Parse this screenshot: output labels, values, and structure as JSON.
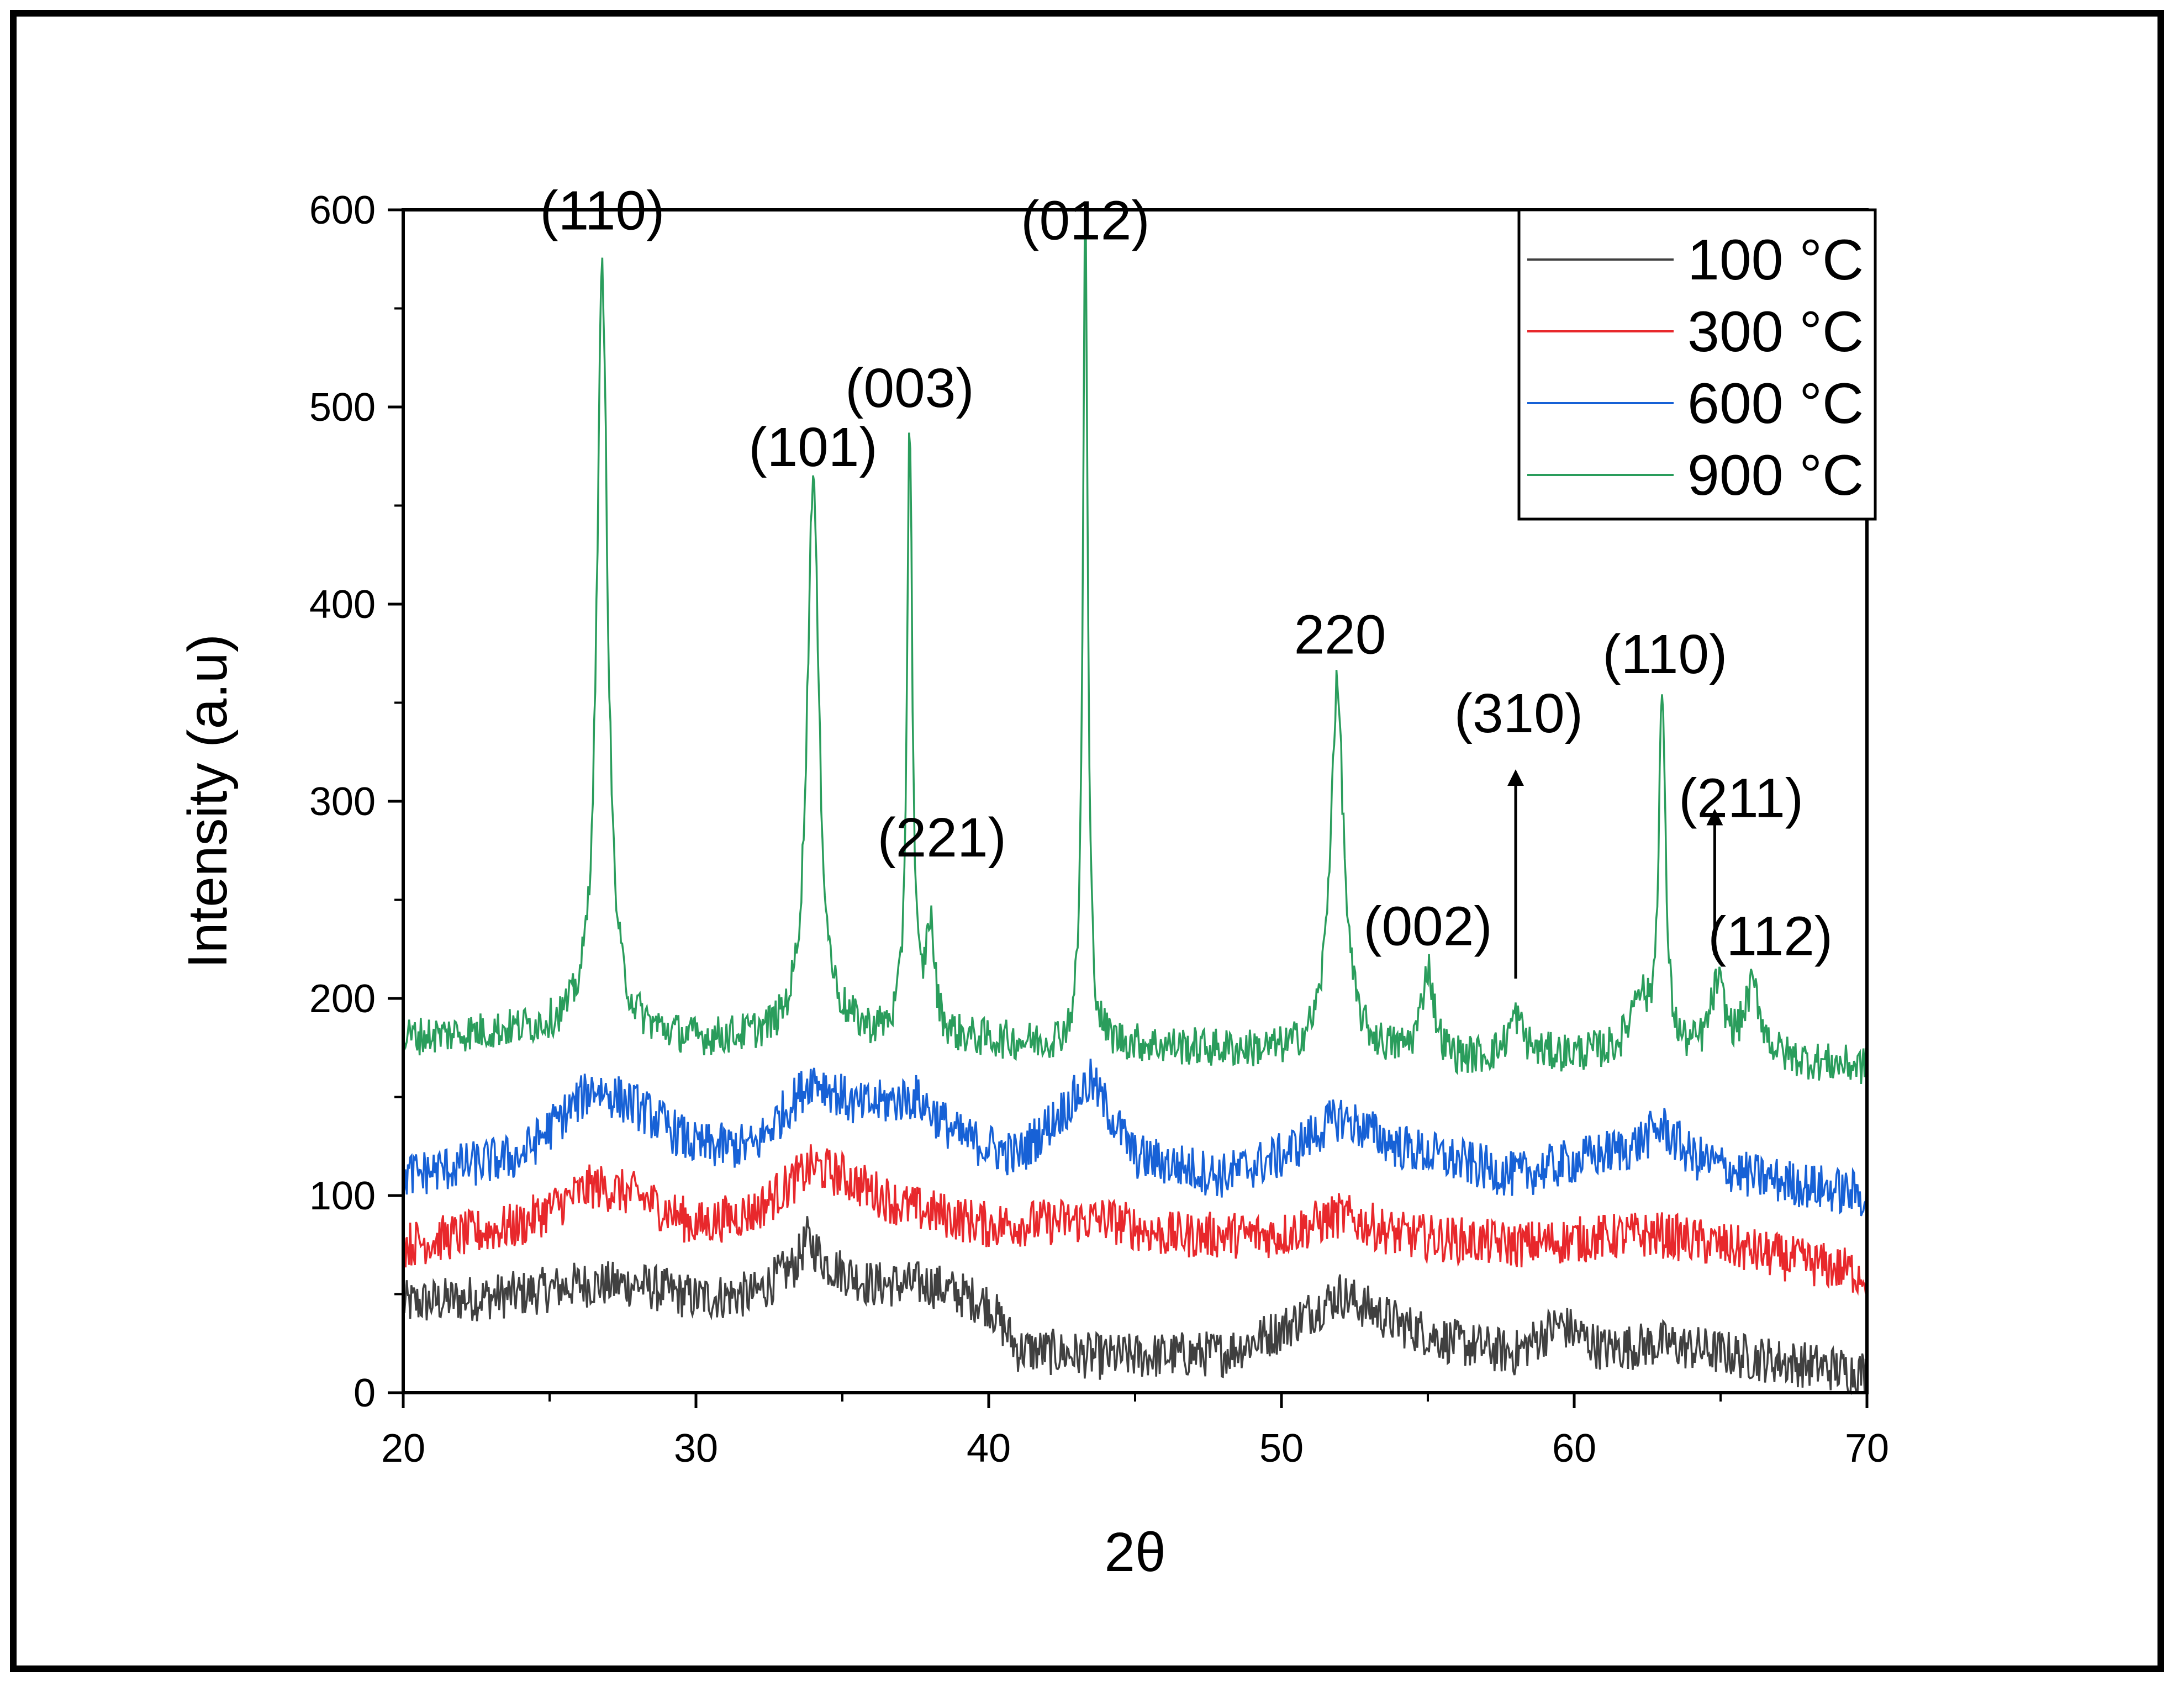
{
  "chart_data": {
    "type": "line",
    "title": "",
    "xlabel": "2θ",
    "ylabel": "Intensity (a.u)",
    "xlim": [
      20,
      70
    ],
    "ylim": [
      0,
      600
    ],
    "xticks": [
      "20",
      "30",
      "40",
      "50",
      "60",
      "70"
    ],
    "yticks": [
      "0",
      "100",
      "200",
      "300",
      "400",
      "500",
      "600"
    ],
    "legend_position": "top-right",
    "series": [
      {
        "name": "100 °C",
        "color": "#404040",
        "baseline": [
          [
            20,
            45
          ],
          [
            24,
            50
          ],
          [
            26,
            55
          ],
          [
            28,
            55
          ],
          [
            30,
            48
          ],
          [
            32,
            50
          ],
          [
            33.4,
            65
          ],
          [
            33.8,
            78
          ],
          [
            34.5,
            65
          ],
          [
            36,
            55
          ],
          [
            38,
            55
          ],
          [
            40,
            45
          ],
          [
            41,
            22
          ],
          [
            44,
            18
          ],
          [
            48,
            20
          ],
          [
            50,
            32
          ],
          [
            52,
            50
          ],
          [
            54,
            35
          ],
          [
            56,
            25
          ],
          [
            58,
            20
          ],
          [
            59.5,
            35
          ],
          [
            61,
            22
          ],
          [
            63,
            25
          ],
          [
            66,
            18
          ],
          [
            70,
            10
          ]
        ],
        "noise": 24,
        "peaks": []
      },
      {
        "name": "300 °C",
        "color": "#e8282c",
        "baseline": [
          [
            20,
            75
          ],
          [
            24,
            85
          ],
          [
            26.5,
            105
          ],
          [
            28,
            100
          ],
          [
            30,
            85
          ],
          [
            32,
            92
          ],
          [
            34,
            115
          ],
          [
            35,
            110
          ],
          [
            37,
            95
          ],
          [
            40,
            85
          ],
          [
            44,
            88
          ],
          [
            46,
            80
          ],
          [
            50,
            80
          ],
          [
            52,
            90
          ],
          [
            54,
            80
          ],
          [
            58,
            75
          ],
          [
            62,
            80
          ],
          [
            63,
            80
          ],
          [
            66,
            72
          ],
          [
            70,
            60
          ]
        ],
        "noise": 24,
        "peaks": []
      },
      {
        "name": "600 °C",
        "color": "#1761d6",
        "baseline": [
          [
            20,
            110
          ],
          [
            24,
            120
          ],
          [
            26.5,
            155
          ],
          [
            28,
            145
          ],
          [
            30,
            125
          ],
          [
            32,
            125
          ],
          [
            34,
            160
          ],
          [
            35.5,
            145
          ],
          [
            37.5,
            150
          ],
          [
            39,
            130
          ],
          [
            41,
            120
          ],
          [
            43.5,
            158
          ],
          [
            45,
            120
          ],
          [
            48,
            110
          ],
          [
            50,
            120
          ],
          [
            52,
            140
          ],
          [
            54,
            125
          ],
          [
            58,
            110
          ],
          [
            62,
            125
          ],
          [
            63,
            135
          ],
          [
            64,
            120
          ],
          [
            66,
            110
          ],
          [
            70,
            100
          ]
        ],
        "noise": 24,
        "peaks": []
      },
      {
        "name": "900 °C",
        "color": "#2a9d5c",
        "baseline": [
          [
            20,
            180
          ],
          [
            26,
            185
          ],
          [
            28,
            182
          ],
          [
            30,
            178
          ],
          [
            33,
            180
          ],
          [
            34,
            185
          ],
          [
            36,
            180
          ],
          [
            40,
            178
          ],
          [
            42,
            176
          ],
          [
            45,
            176
          ],
          [
            50,
            172
          ],
          [
            53,
            172
          ],
          [
            56,
            168
          ],
          [
            58,
            170
          ],
          [
            62,
            172
          ],
          [
            64,
            170
          ],
          [
            67,
            168
          ],
          [
            70,
            165
          ]
        ],
        "noise": 20,
        "peaks": [
          [
            26.8,
            385,
            0.22
          ],
          [
            34.0,
            280,
            0.24
          ],
          [
            37.3,
            310,
            0.11
          ],
          [
            38.0,
            55,
            0.18
          ],
          [
            43.3,
            420,
            0.1
          ],
          [
            51.9,
            185,
            0.28
          ],
          [
            55.0,
            45,
            0.25
          ],
          [
            58.0,
            20,
            0.3
          ],
          [
            62.2,
            30,
            0.3
          ],
          [
            63.0,
            180,
            0.14
          ],
          [
            64.9,
            35,
            0.3
          ],
          [
            66.1,
            35,
            0.35
          ]
        ]
      }
    ],
    "annotations": [
      {
        "text": "(110)",
        "x": 26.8,
        "y": 590
      },
      {
        "text": "(101)",
        "x": 34.0,
        "y": 470
      },
      {
        "text": "(003)",
        "x": 37.3,
        "y": 500
      },
      {
        "text": "(221)",
        "x": 38.4,
        "y": 272
      },
      {
        "text": "(012)",
        "x": 43.3,
        "y": 585
      },
      {
        "text": "220",
        "x": 52.0,
        "y": 375
      },
      {
        "text": "(002)",
        "x": 55.0,
        "y": 227
      },
      {
        "text": "(310)",
        "x": 58.1,
        "y": 335
      },
      {
        "text": "(110)",
        "x": 63.1,
        "y": 365
      },
      {
        "text": "(211)",
        "x": 65.7,
        "y": 292
      },
      {
        "text": "(112)",
        "x": 66.7,
        "y": 222
      }
    ],
    "arrows": [
      {
        "x": 58.0,
        "from": 210,
        "to": 312
      },
      {
        "x": 64.8,
        "from": 222,
        "to": 292
      }
    ]
  }
}
